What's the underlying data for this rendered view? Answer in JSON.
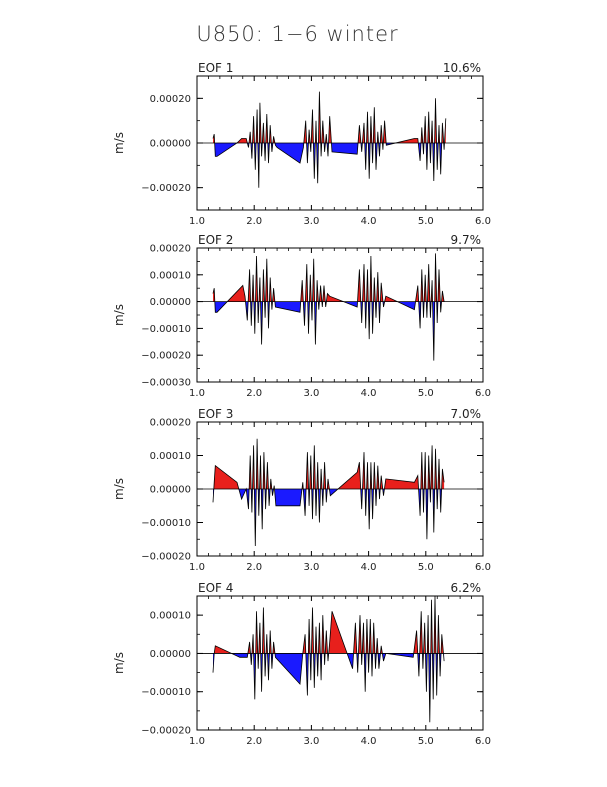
{
  "title": "U850: 1−6 winter",
  "chart_data": [
    {
      "type": "area",
      "panel_label": "EOF 1",
      "variance_label": "10.6%",
      "ylabel": "m/s",
      "xlim": [
        1.0,
        6.0
      ],
      "ylim": [
        -0.0003,
        0.0003
      ],
      "x_ticks": [
        "1.0",
        "2.0",
        "3.0",
        "4.0",
        "5.0",
        "6.0"
      ],
      "y_ticks": [
        "0.00020",
        "0.00000",
        "−0.00020"
      ],
      "y_tick_values": [
        0.0002,
        0.0,
        -0.0002
      ],
      "positive_color": "#e8201c",
      "negative_color": "#1a1aff",
      "x": [
        1.28,
        1.3,
        1.32,
        1.35,
        1.7,
        1.78,
        1.86,
        1.9,
        1.93,
        1.96,
        1.99,
        2.02,
        2.05,
        2.08,
        2.1,
        2.13,
        2.16,
        2.19,
        2.22,
        2.25,
        2.28,
        2.31,
        2.34,
        2.37,
        2.4,
        2.8,
        2.86,
        2.9,
        2.93,
        2.96,
        2.99,
        3.02,
        3.05,
        3.08,
        3.11,
        3.14,
        3.17,
        3.2,
        3.23,
        3.26,
        3.29,
        3.32,
        3.36,
        3.8,
        3.84,
        3.88,
        3.92,
        3.95,
        3.98,
        4.01,
        4.04,
        4.07,
        4.1,
        4.13,
        4.16,
        4.19,
        4.22,
        4.25,
        4.28,
        4.31,
        4.8,
        4.86,
        4.9,
        4.93,
        4.96,
        4.99,
        5.02,
        5.05,
        5.08,
        5.11,
        5.14,
        5.17,
        5.2,
        5.23,
        5.26,
        5.29,
        5.32,
        5.35
      ],
      "y": [
        2e-05,
        4e-05,
        -6e-05,
        -6e-05,
        0.0,
        2e-05,
        2e-05,
        -2e-05,
        5e-05,
        -7e-05,
        0.00012,
        -0.00012,
        0.00015,
        -0.0002,
        0.00018,
        -6e-05,
        9e-05,
        -8e-05,
        0.00013,
        -9e-05,
        8e-05,
        -4e-05,
        3e-05,
        -1e-05,
        -2e-05,
        -9e-05,
        -2e-05,
        0.0001,
        -9e-05,
        6e-05,
        -4e-05,
        0.00015,
        -0.00016,
        0.0001,
        -0.00018,
        0.00023,
        -6e-05,
        0.0001,
        -4e-05,
        4e-05,
        -6e-05,
        0.00012,
        -4e-05,
        -5e-05,
        8e-05,
        -4e-05,
        9e-05,
        -0.00012,
        0.00014,
        -0.00016,
        0.00012,
        -9e-05,
        0.00016,
        -0.00012,
        5e-05,
        -6e-05,
        8e-05,
        -3e-05,
        0.0001,
        -1e-05,
        2e-05,
        2e-05,
        -8e-05,
        7e-05,
        -5e-05,
        0.00012,
        -0.00012,
        0.00014,
        -9e-05,
        0.0001,
        -0.00017,
        0.0002,
        -0.00012,
        8e-05,
        -0.00014,
        9e-05,
        -3e-05,
        0.00011
      ]
    },
    {
      "type": "area",
      "panel_label": "EOF 2",
      "variance_label": "9.7%",
      "ylabel": "m/s",
      "xlim": [
        1.0,
        6.0
      ],
      "ylim": [
        -0.0003,
        0.0002
      ],
      "x_ticks": [
        "1.0",
        "2.0",
        "3.0",
        "4.0",
        "5.0",
        "6.0"
      ],
      "y_ticks": [
        "0.00020",
        "0.00010",
        "0.00000",
        "−0.00010",
        "−0.00020",
        "−0.00030"
      ],
      "y_tick_values": [
        0.0002,
        0.0001,
        0.0,
        -0.0001,
        -0.0002,
        -0.0003
      ],
      "positive_color": "#e8201c",
      "negative_color": "#1a1aff",
      "x": [
        1.28,
        1.3,
        1.32,
        1.35,
        1.8,
        1.84,
        1.88,
        1.92,
        1.95,
        1.98,
        2.01,
        2.04,
        2.07,
        2.1,
        2.13,
        2.16,
        2.19,
        2.22,
        2.25,
        2.28,
        2.31,
        2.34,
        2.37,
        2.8,
        2.84,
        2.88,
        2.92,
        2.95,
        2.98,
        3.01,
        3.04,
        3.07,
        3.1,
        3.13,
        3.16,
        3.19,
        3.22,
        3.25,
        3.28,
        3.32,
        3.8,
        3.84,
        3.88,
        3.92,
        3.95,
        3.98,
        4.01,
        4.04,
        4.07,
        4.1,
        4.13,
        4.16,
        4.19,
        4.22,
        4.26,
        4.3,
        4.8,
        4.86,
        4.9,
        4.93,
        4.96,
        4.99,
        5.02,
        5.05,
        5.08,
        5.11,
        5.14,
        5.17,
        5.2,
        5.23,
        5.26,
        5.29,
        5.32
      ],
      "y": [
        3e-05,
        5e-05,
        -4e-05,
        -4e-05,
        6e-05,
        2e-05,
        -7e-05,
        0.00012,
        -9e-05,
        0.0001,
        -0.00012,
        0.00017,
        -8e-05,
        9e-05,
        -0.00016,
        0.00012,
        -6e-05,
        0.00016,
        -0.0001,
        9e-05,
        -3e-05,
        5e-05,
        -2e-05,
        -4e-05,
        8e-05,
        -9e-05,
        0.00014,
        -0.00012,
        0.0001,
        -7e-05,
        0.00016,
        -0.00016,
        8e-05,
        -3e-05,
        6e-05,
        -2e-05,
        6e-05,
        -2e-05,
        3e-05,
        2e-05,
        -2e-05,
        0.00012,
        -8e-05,
        0.00014,
        -0.0001,
        0.00012,
        -0.00014,
        0.00017,
        -0.00012,
        9e-05,
        -6e-05,
        0.00011,
        -8e-05,
        7e-05,
        -2e-05,
        2e-05,
        -3e-05,
        6e-05,
        -0.0001,
        0.00012,
        -6e-05,
        0.0001,
        -6e-05,
        0.00014,
        -6e-05,
        8e-05,
        -0.00022,
        0.00018,
        -8e-05,
        0.00012,
        -4e-05,
        4e-05,
        0.0
      ]
    },
    {
      "type": "area",
      "panel_label": "EOF 3",
      "variance_label": "7.0%",
      "ylabel": "m/s",
      "xlim": [
        1.0,
        6.0
      ],
      "ylim": [
        -0.0002,
        0.0002
      ],
      "x_ticks": [
        "1.0",
        "2.0",
        "3.0",
        "4.0",
        "5.0",
        "6.0"
      ],
      "y_ticks": [
        "0.00020",
        "0.00010",
        "0.00000",
        "−0.00010",
        "−0.00020"
      ],
      "y_tick_values": [
        0.0002,
        0.0001,
        0.0,
        -0.0001,
        -0.0002
      ],
      "positive_color": "#e8201c",
      "negative_color": "#1a1aff",
      "x": [
        1.28,
        1.3,
        1.32,
        1.7,
        1.78,
        1.86,
        1.9,
        1.93,
        1.96,
        1.99,
        2.02,
        2.05,
        2.08,
        2.11,
        2.14,
        2.17,
        2.2,
        2.23,
        2.26,
        2.29,
        2.32,
        2.35,
        2.38,
        2.8,
        2.85,
        2.89,
        2.93,
        2.96,
        2.99,
        3.02,
        3.05,
        3.08,
        3.11,
        3.14,
        3.17,
        3.2,
        3.23,
        3.26,
        3.29,
        3.33,
        3.8,
        3.84,
        3.88,
        3.92,
        3.95,
        3.98,
        4.01,
        4.04,
        4.07,
        4.1,
        4.13,
        4.16,
        4.19,
        4.22,
        4.26,
        4.3,
        4.8,
        4.86,
        4.9,
        4.93,
        4.96,
        4.99,
        5.02,
        5.05,
        5.08,
        5.11,
        5.14,
        5.17,
        5.2,
        5.23,
        5.26,
        5.29,
        5.32
      ],
      "y": [
        -4e-05,
        2e-05,
        7e-05,
        2e-05,
        -3e-05,
        0.0,
        -6e-05,
        0.0001,
        -7e-05,
        0.00013,
        -0.00017,
        0.00015,
        -8e-05,
        0.0001,
        -0.00012,
        0.00011,
        -6e-05,
        8e-05,
        -5e-05,
        3e-05,
        -2e-05,
        1e-05,
        -5e-05,
        -5e-05,
        2e-05,
        -8e-05,
        0.00011,
        -5e-05,
        0.0001,
        -9e-05,
        0.00013,
        -8e-05,
        8e-05,
        -0.0001,
        6e-05,
        -5e-05,
        8e-05,
        -4e-05,
        3e-05,
        -2e-05,
        5e-05,
        8e-05,
        -6e-05,
        0.00011,
        -8e-05,
        8e-05,
        -0.00012,
        8e-05,
        -9e-05,
        8e-05,
        -5e-05,
        7e-05,
        -3e-05,
        4e-05,
        -2e-05,
        3e-05,
        2e-05,
        4e-05,
        -8e-05,
        0.00011,
        -7e-05,
        0.00011,
        -0.00015,
        0.0001,
        -4e-05,
        0.00013,
        -0.00013,
        0.00012,
        -6e-05,
        9e-05,
        -7e-05,
        6e-05,
        2e-05
      ]
    },
    {
      "type": "area",
      "panel_label": "EOF 4",
      "variance_label": "6.2%",
      "ylabel": "m/s",
      "xlim": [
        1.0,
        6.0
      ],
      "ylim": [
        -0.0002,
        0.00015
      ],
      "x_ticks": [
        "1.0",
        "2.0",
        "3.0",
        "4.0",
        "5.0",
        "6.0"
      ],
      "y_ticks": [
        "0.00010",
        "0.00000",
        "−0.00010",
        "−0.00020"
      ],
      "y_tick_values": [
        0.0001,
        0.0,
        -0.0001,
        -0.0002
      ],
      "positive_color": "#e8201c",
      "negative_color": "#1a1aff",
      "x": [
        1.28,
        1.3,
        1.32,
        1.75,
        1.82,
        1.88,
        1.92,
        1.95,
        1.98,
        2.01,
        2.04,
        2.07,
        2.1,
        2.13,
        2.16,
        2.19,
        2.22,
        2.25,
        2.28,
        2.31,
        2.34,
        2.37,
        2.8,
        2.85,
        2.89,
        2.93,
        2.96,
        2.99,
        3.02,
        3.05,
        3.08,
        3.11,
        3.14,
        3.17,
        3.2,
        3.23,
        3.26,
        3.29,
        3.32,
        3.36,
        3.72,
        3.77,
        3.81,
        3.85,
        3.88,
        3.91,
        3.94,
        3.97,
        4.0,
        4.03,
        4.06,
        4.09,
        4.12,
        4.15,
        4.18,
        4.22,
        4.26,
        4.3,
        4.78,
        4.84,
        4.88,
        4.92,
        4.95,
        4.98,
        5.01,
        5.04,
        5.07,
        5.1,
        5.13,
        5.16,
        5.19,
        5.22,
        5.25,
        5.28,
        5.32
      ],
      "y": [
        -5e-05,
        0.0,
        2e-05,
        -1e-05,
        -1e-05,
        -1e-05,
        3e-05,
        -3e-05,
        5e-05,
        -0.00012,
        0.00011,
        -4e-05,
        8e-05,
        -0.0001,
        0.00012,
        -6e-05,
        5e-05,
        -7e-05,
        6e-05,
        -4e-05,
        3e-05,
        -1e-05,
        -8e-05,
        0.0,
        5e-05,
        -0.00011,
        9e-05,
        -7e-05,
        0.00012,
        -9e-05,
        7e-05,
        -6e-05,
        8e-05,
        -7e-05,
        0.0001,
        -3e-05,
        6e-05,
        -2e-05,
        3e-05,
        0.00011,
        -4e-05,
        8e-05,
        -5e-05,
        0.0001,
        -3e-05,
        8e-05,
        -0.0001,
        9e-05,
        -5e-05,
        9e-05,
        -6e-05,
        8e-05,
        -4e-05,
        4e-05,
        -4e-05,
        2e-05,
        -2e-05,
        0.0,
        -1e-05,
        6e-05,
        -6e-05,
        0.00011,
        -4e-05,
        8e-05,
        -0.0001,
        0.0001,
        -0.00018,
        0.00014,
        -0.00012,
        0.00015,
        -0.00011,
        0.0001,
        -6e-05,
        5e-05,
        -2e-05
      ]
    }
  ]
}
